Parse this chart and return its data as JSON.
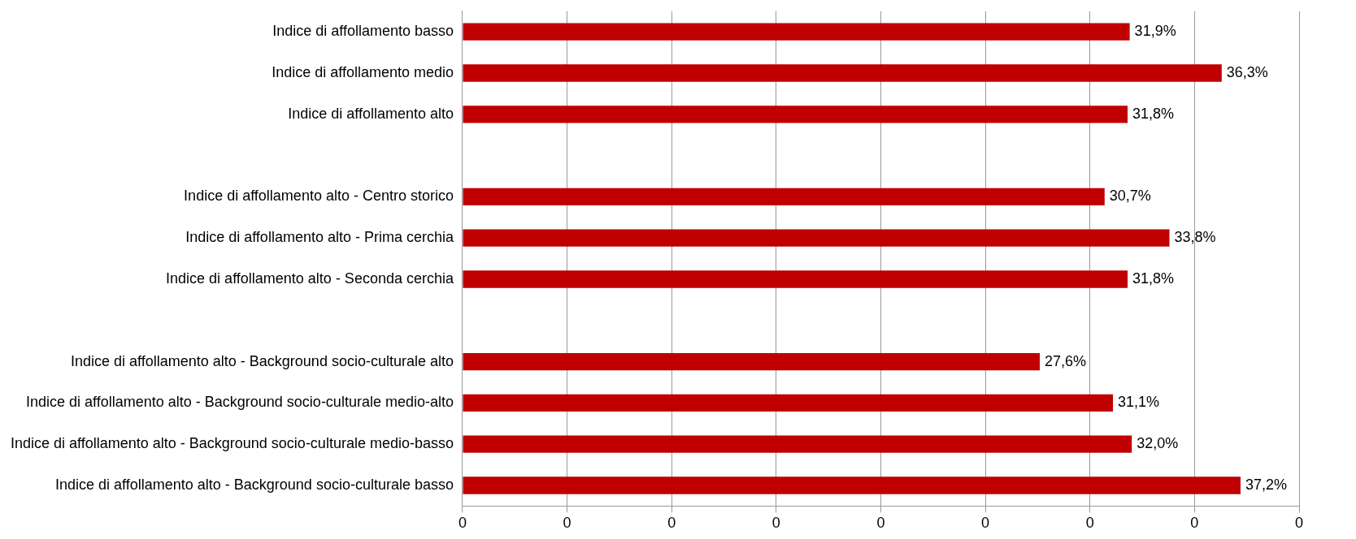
{
  "chart_data": {
    "type": "bar",
    "orientation": "horizontal",
    "categories": [
      "Indice di affollamento basso",
      "Indice di affollamento medio",
      "Indice di affollamento alto",
      null,
      "Indice di affollamento alto - Centro storico",
      "Indice di affollamento alto - Prima cerchia",
      "Indice di affollamento alto - Seconda cerchia",
      null,
      "Indice di affollamento alto - Background socio-culturale alto",
      "Indice di affollamento alto - Background socio-culturale medio-alto",
      "Indice di affollamento alto - Background socio-culturale medio-basso",
      "Indice di affollamento alto - Background socio-culturale basso"
    ],
    "values": [
      0.319,
      0.363,
      0.318,
      null,
      0.307,
      0.338,
      0.318,
      null,
      0.276,
      0.311,
      0.32,
      0.372
    ],
    "value_labels": [
      "31,9%",
      "36,3%",
      "31,8%",
      null,
      "30,7%",
      "33,8%",
      "31,8%",
      null,
      "27,6%",
      "31,1%",
      "32,0%",
      "37,2%"
    ],
    "color": "#c00000",
    "xlim": [
      0,
      0.4
    ],
    "xticks": [
      {
        "value": 0,
        "label": "0"
      },
      {
        "value": 0.05,
        "label": "0"
      },
      {
        "value": 0.1,
        "label": "0"
      },
      {
        "value": 0.15,
        "label": "0"
      },
      {
        "value": 0.2,
        "label": "0"
      },
      {
        "value": 0.25,
        "label": "0"
      },
      {
        "value": 0.3,
        "label": "0"
      },
      {
        "value": 0.35,
        "label": "0"
      },
      {
        "value": 0.4,
        "label": "0"
      }
    ],
    "grid": "x",
    "legend": false
  }
}
